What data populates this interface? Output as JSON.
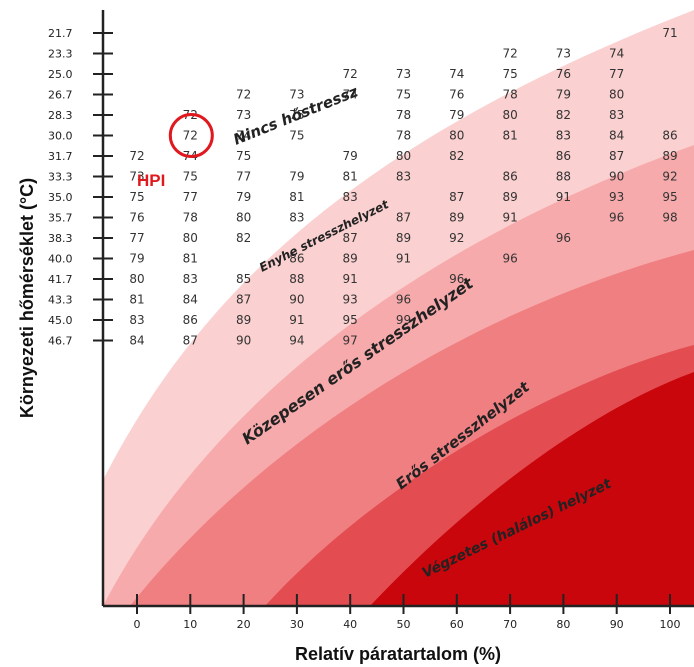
{
  "chart_data": {
    "type": "table",
    "xlabel": "Relatív páratartalom (%)",
    "ylabel": "Környezeti hőmérséklet (°C)",
    "x_ticks": [
      "0",
      "10",
      "20",
      "30",
      "40",
      "50",
      "60",
      "70",
      "80",
      "90",
      "100"
    ],
    "y_ticks": [
      "21.7",
      "23.3",
      "25.0",
      "26.7",
      "28.3",
      "30.0",
      "31.7",
      "33.3",
      "35.0",
      "35.7",
      "38.3",
      "40.0",
      "41.7",
      "43.3",
      "45.0",
      "46.7"
    ],
    "x_values": [
      0,
      10,
      20,
      30,
      40,
      50,
      60,
      70,
      80,
      90,
      100
    ],
    "rows": [
      [
        null,
        null,
        null,
        null,
        null,
        null,
        null,
        null,
        null,
        null,
        71
      ],
      [
        null,
        null,
        null,
        null,
        null,
        null,
        null,
        72,
        73,
        74
      ],
      [
        null,
        null,
        null,
        null,
        72,
        73,
        74,
        75,
        76,
        77
      ],
      [
        null,
        null,
        72,
        73,
        74,
        75,
        76,
        78,
        79,
        80
      ],
      [
        null,
        72,
        73,
        75,
        null,
        78,
        79,
        80,
        82,
        83
      ],
      [
        null,
        72,
        74,
        75,
        null,
        78,
        80,
        81,
        83,
        84,
        86
      ],
      [
        72,
        74,
        75,
        null,
        79,
        80,
        82,
        null,
        86,
        87,
        89
      ],
      [
        73,
        75,
        77,
        79,
        81,
        83,
        null,
        86,
        88,
        90,
        92
      ],
      [
        75,
        77,
        79,
        81,
        83,
        null,
        87,
        89,
        91,
        93,
        95
      ],
      [
        76,
        78,
        80,
        83,
        null,
        87,
        89,
        91,
        null,
        96,
        98
      ],
      [
        77,
        80,
        82,
        null,
        87,
        89,
        92,
        null,
        96,
        null
      ],
      [
        79,
        81,
        null,
        86,
        89,
        91,
        null,
        96
      ],
      [
        80,
        83,
        85,
        88,
        91,
        null,
        96
      ],
      [
        81,
        84,
        87,
        90,
        93,
        96
      ],
      [
        83,
        86,
        89,
        91,
        95,
        99
      ],
      [
        84,
        87,
        90,
        94,
        97
      ]
    ],
    "zones": [
      {
        "label": "Nincs hőstressz",
        "color": "#fbd0d0"
      },
      {
        "label": "Enyhe stresszhelyzet",
        "color": "#f7aaab"
      },
      {
        "label": "Közepesen erős stresszhelyzet",
        "color": "#f07f82"
      },
      {
        "label": "Erős stresszhelyzet",
        "color": "#e34c50"
      },
      {
        "label": "Végzetes (halálos) helyzet",
        "color": "#c8060c"
      }
    ],
    "annotation": {
      "label": "HPI",
      "x": 10,
      "y": "30.0",
      "value": 72,
      "color": "#e0191e"
    }
  }
}
